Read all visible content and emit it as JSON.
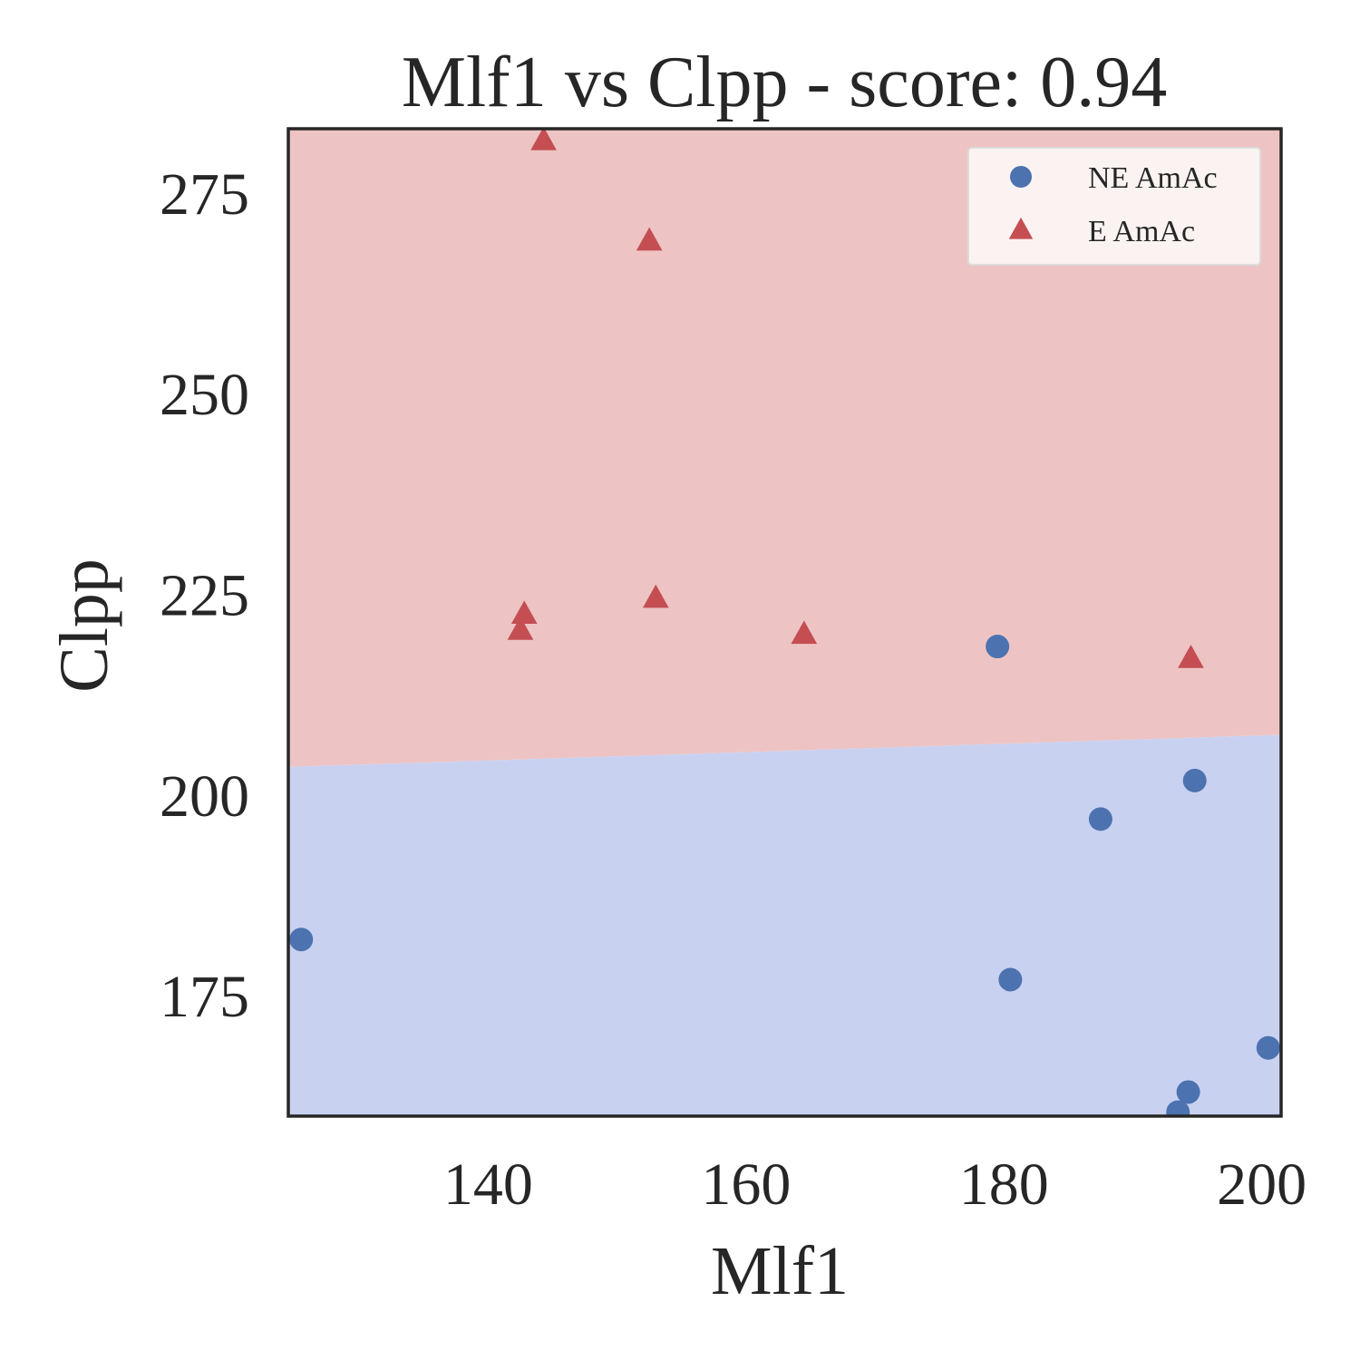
{
  "chart_data": {
    "type": "scatter",
    "title": "Mlf1 vs Clpp - score: 0.94",
    "xlabel": "Mlf1",
    "ylabel": "Clpp",
    "xlim": [
      124.5,
      201.5
    ],
    "ylim": [
      160,
      283
    ],
    "xticks": [
      140,
      160,
      180,
      200
    ],
    "yticks": [
      175,
      200,
      225,
      250,
      275
    ],
    "grid": false,
    "legend_position": "top-right",
    "decision_boundary": {
      "x": [
        124.5,
        201.5
      ],
      "y": [
        203.5,
        207.5
      ]
    },
    "regions": [
      {
        "label": "E AmAc",
        "side": "above",
        "color": "#edc4c3"
      },
      {
        "label": "NE AmAc",
        "side": "below",
        "color": "#c9d1f1"
      }
    ],
    "series": [
      {
        "name": "NE AmAc",
        "marker": "circle",
        "color": "#4c72b0",
        "points": [
          {
            "x": 125.5,
            "y": 182.0
          },
          {
            "x": 179.5,
            "y": 218.5
          },
          {
            "x": 180.5,
            "y": 177.0
          },
          {
            "x": 187.5,
            "y": 197.0
          },
          {
            "x": 193.5,
            "y": 160.5
          },
          {
            "x": 194.3,
            "y": 163.0
          },
          {
            "x": 194.8,
            "y": 201.8
          },
          {
            "x": 200.5,
            "y": 168.5
          }
        ]
      },
      {
        "name": "E AmAc",
        "marker": "triangle",
        "color": "#c44e52",
        "points": [
          {
            "x": 144.3,
            "y": 281.5
          },
          {
            "x": 152.5,
            "y": 269.0
          },
          {
            "x": 142.8,
            "y": 222.5
          },
          {
            "x": 142.5,
            "y": 220.5
          },
          {
            "x": 153.0,
            "y": 224.5
          },
          {
            "x": 164.5,
            "y": 220.0
          },
          {
            "x": 194.5,
            "y": 217.0
          }
        ]
      }
    ]
  }
}
